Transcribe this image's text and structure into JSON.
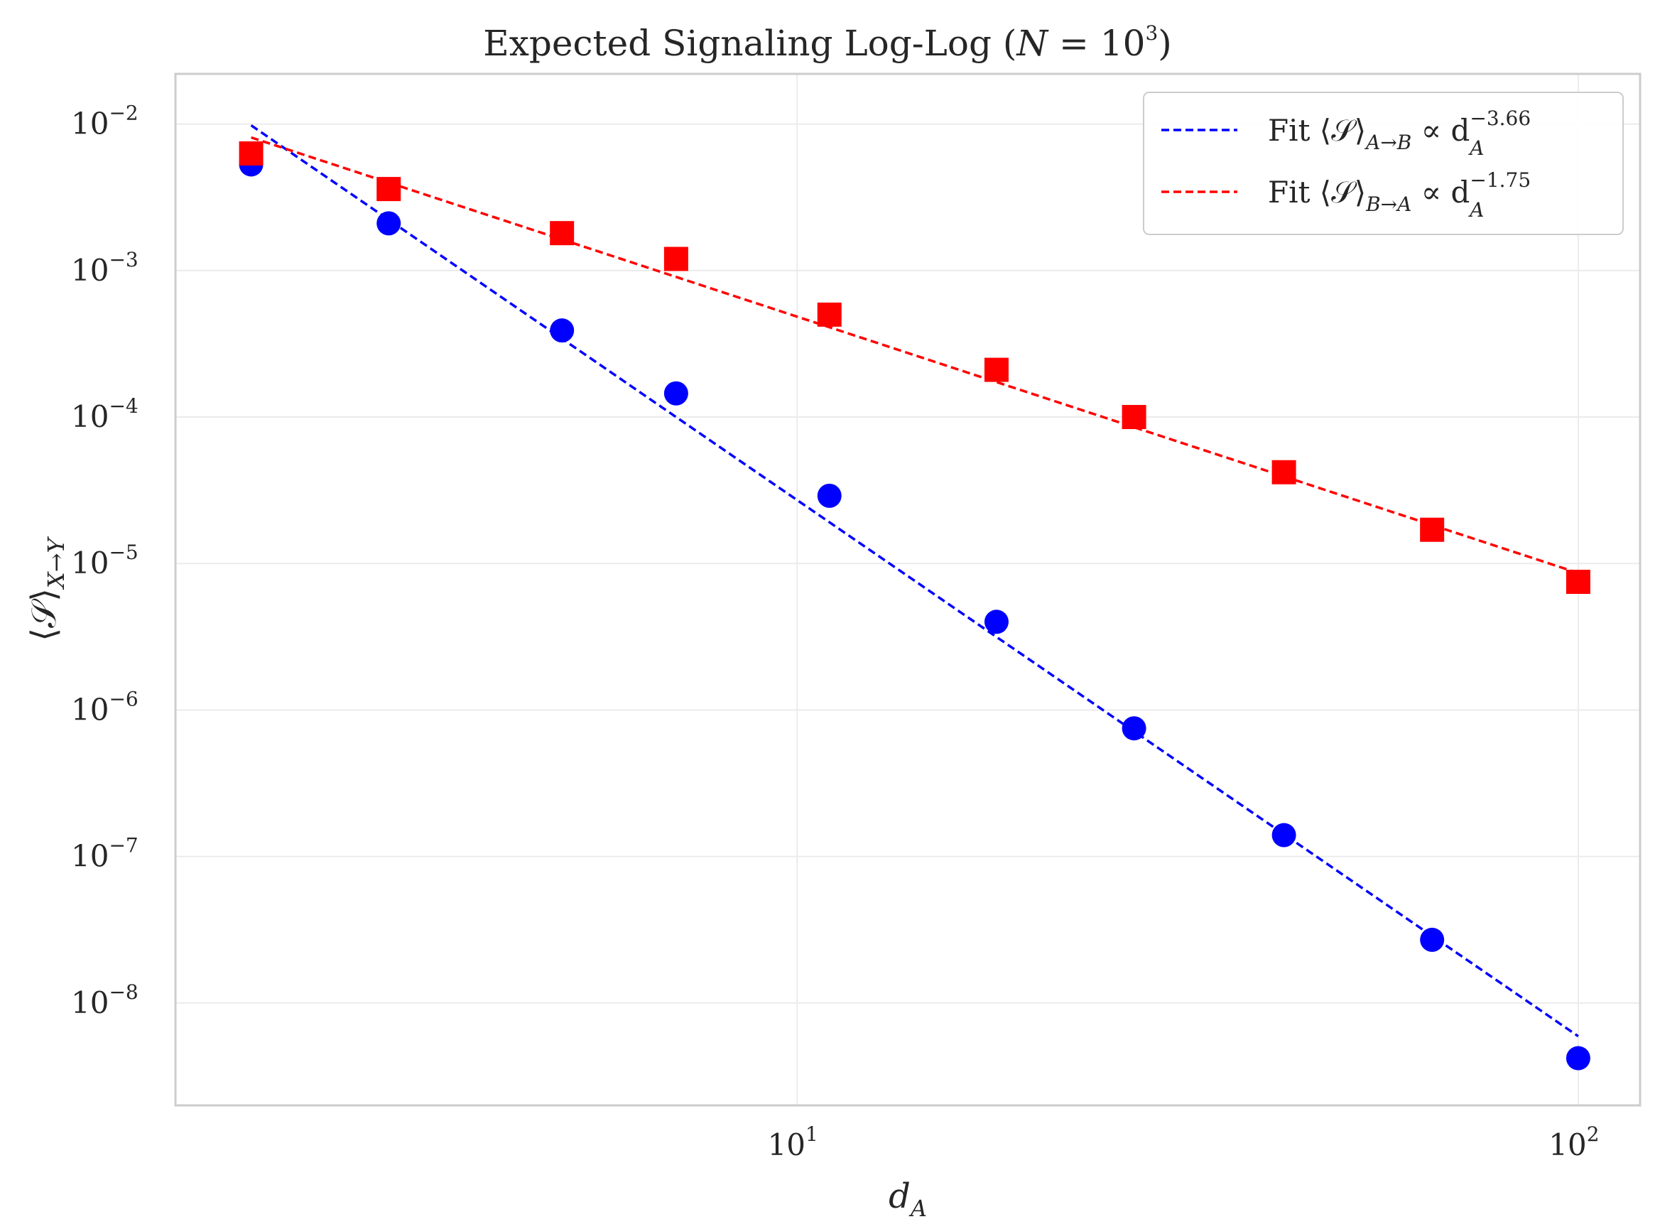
{
  "chart_data": {
    "type": "scatter",
    "title": {
      "text": "Expected Signaling Log-Log (",
      "var": "N",
      "eq": " = 10",
      "sup": "3",
      "close": ")"
    },
    "xlabel": {
      "main": "d",
      "sub": "A"
    },
    "ylabel": {
      "main": "⟨𝒮⟩",
      "sub": "X→Y"
    },
    "xscale": "log",
    "yscale": "log",
    "xlim": [
      1.6,
      120
    ],
    "ylim": [
      2e-09,
      0.022
    ],
    "grid": true,
    "legend_position": "top-right",
    "x_ticks": [
      {
        "base": "10",
        "exp": "1",
        "value": 10
      },
      {
        "base": "10",
        "exp": "2",
        "value": 100
      }
    ],
    "y_ticks": [
      {
        "base": "10",
        "exp": "−2",
        "value": 0.01
      },
      {
        "base": "10",
        "exp": "−3",
        "value": 0.001
      },
      {
        "base": "10",
        "exp": "−4",
        "value": 0.0001
      },
      {
        "base": "10",
        "exp": "−5",
        "value": 1e-05
      },
      {
        "base": "10",
        "exp": "−6",
        "value": 1e-06
      },
      {
        "base": "10",
        "exp": "−7",
        "value": 1e-07
      },
      {
        "base": "10",
        "exp": "−8",
        "value": 1e-08
      }
    ],
    "series": [
      {
        "key": "A_to_B",
        "marker": "circle",
        "color": "#0000ff",
        "x": [
          2,
          3,
          5,
          7,
          11,
          18,
          27,
          42,
          65,
          100
        ],
        "y": [
          0.0053,
          0.0021,
          0.00039,
          0.000145,
          2.9e-05,
          4e-06,
          7.5e-07,
          1.4e-07,
          2.7e-08,
          4.2e-09
        ]
      },
      {
        "key": "B_to_A",
        "marker": "square",
        "color": "#ff0000",
        "x": [
          2,
          3,
          5,
          7,
          11,
          18,
          27,
          42,
          65,
          100
        ],
        "y": [
          0.0063,
          0.0036,
          0.0018,
          0.0012,
          0.0005,
          0.00021,
          0.0001,
          4.2e-05,
          1.7e-05,
          7.5e-06
        ]
      }
    ],
    "fits": [
      {
        "key": "A_to_B",
        "color": "#0000ff",
        "exponent": -3.66,
        "x_range": [
          2,
          100
        ],
        "y_at_start": 0.0098,
        "label": {
          "prefix": "Fit ⟨𝒮⟩",
          "sub": "A→B",
          "mid": " ∝ d",
          "exp": "−3.66",
          "base_sub": "A"
        }
      },
      {
        "key": "B_to_A",
        "color": "#ff0000",
        "exponent": -1.75,
        "x_range": [
          2,
          100
        ],
        "y_at_start": 0.0081,
        "label": {
          "prefix": "Fit ⟨𝒮⟩",
          "sub": "B→A",
          "mid": " ∝ d",
          "exp": "−1.75",
          "base_sub": "A"
        }
      }
    ]
  }
}
